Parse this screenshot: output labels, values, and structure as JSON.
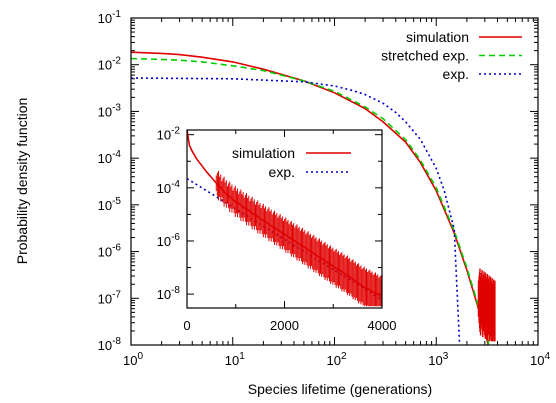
{
  "chart_data": [
    {
      "type": "line",
      "xlabel": "Species lifetime (generations)",
      "ylabel": "Probability density function",
      "xscale": "log",
      "yscale": "log",
      "xlim": [
        1,
        10000
      ],
      "ylim": [
        1e-08,
        0.1
      ],
      "x_ticks": [
        {
          "value": 1,
          "base": "10",
          "exp": "0"
        },
        {
          "value": 10,
          "base": "10",
          "exp": "1"
        },
        {
          "value": 100,
          "base": "10",
          "exp": "2"
        },
        {
          "value": 1000,
          "base": "10",
          "exp": "3"
        },
        {
          "value": 10000,
          "base": "10",
          "exp": "4"
        }
      ],
      "y_ticks": [
        {
          "value": 1e-08,
          "base": "10",
          "exp": "-8"
        },
        {
          "value": 1e-07,
          "base": "10",
          "exp": "-7"
        },
        {
          "value": 1e-06,
          "base": "10",
          "exp": "-6"
        },
        {
          "value": 1e-05,
          "base": "10",
          "exp": "-5"
        },
        {
          "value": 0.0001,
          "base": "10",
          "exp": "-4"
        },
        {
          "value": 0.001,
          "base": "10",
          "exp": "-3"
        },
        {
          "value": 0.01,
          "base": "10",
          "exp": "-2"
        },
        {
          "value": 0.1,
          "base": "10",
          "exp": "-1"
        }
      ],
      "legend_position": "top-right",
      "series": [
        {
          "name": "simulation",
          "color": "#e00000",
          "style": "solid",
          "x": [
            1,
            2,
            3,
            5,
            10,
            20,
            50,
            100,
            200,
            300,
            500,
            700,
            1000,
            1500,
            2000,
            2500,
            3000,
            3500
          ],
          "y": [
            0.0185,
            0.0175,
            0.0165,
            0.0145,
            0.0115,
            0.008,
            0.0045,
            0.0025,
            0.00115,
            0.0006,
            0.00022,
            8e-05,
            2e-05,
            2.5e-06,
            4e-07,
            8e-08,
            2e-08,
            5e-09
          ]
        },
        {
          "name": "stretched exp.",
          "color": "#00cc00",
          "style": "dashed",
          "x": [
            1,
            2,
            3,
            5,
            10,
            20,
            50,
            100,
            200,
            300,
            500,
            700,
            1000,
            1500,
            2000,
            2500,
            3000,
            3500
          ],
          "y": [
            0.0135,
            0.013,
            0.0125,
            0.0115,
            0.0095,
            0.0075,
            0.0045,
            0.0027,
            0.00125,
            0.0007,
            0.00025,
            9e-05,
            2.3e-05,
            2.8e-06,
            4.5e-07,
            9e-08,
            2.2e-08,
            6e-09
          ]
        },
        {
          "name": "exp.",
          "color": "#0000cc",
          "style": "dotted",
          "x": [
            1,
            10,
            50,
            100,
            150,
            200,
            300,
            400,
            500,
            700,
            1000,
            1200,
            1500,
            1700
          ],
          "y": [
            0.0052,
            0.005,
            0.0043,
            0.0035,
            0.0028,
            0.0023,
            0.0015,
            0.00095,
            0.0006,
            0.00025,
            6e-05,
            2e-05,
            3e-06,
            9e-09
          ]
        }
      ]
    },
    {
      "type": "line",
      "inset": true,
      "xscale": "linear",
      "yscale": "log",
      "xlim": [
        0,
        4000
      ],
      "ylim": [
        3e-09,
        0.015
      ],
      "x_ticks": [
        "0",
        "2000",
        "4000"
      ],
      "y_ticks": [
        {
          "value": 1e-08,
          "base": "10",
          "exp": "-8"
        },
        {
          "value": 1e-06,
          "base": "10",
          "exp": "-6"
        },
        {
          "value": 0.0001,
          "base": "10",
          "exp": "-4"
        },
        {
          "value": 0.01,
          "base": "10",
          "exp": "-2"
        }
      ],
      "legend_position": "top-right",
      "series": [
        {
          "name": "simulation",
          "color": "#e00000",
          "style": "solid",
          "x": [
            0,
            50,
            100,
            200,
            400,
            600,
            800,
            1000,
            1500,
            2000,
            2500,
            3000,
            3300,
            3600,
            4000
          ],
          "y": [
            0.015,
            0.004,
            0.0025,
            0.0012,
            0.0004,
            0.00015,
            6e-05,
            3e-05,
            7e-06,
            1.8e-06,
            4.5e-07,
            1.1e-07,
            5e-08,
            2e-08,
            8e-09
          ]
        },
        {
          "name": "exp.",
          "color": "#0000cc",
          "style": "dotted",
          "x": [
            0,
            500,
            1000,
            1500,
            2000,
            2500,
            3000,
            3500,
            4000
          ],
          "y": [
            0.00022,
            6e-05,
            1.6e-05,
            4.3e-06,
            1.15e-06,
            3.1e-07,
            8.4e-08,
            2.3e-08,
            6e-09
          ]
        }
      ]
    }
  ]
}
